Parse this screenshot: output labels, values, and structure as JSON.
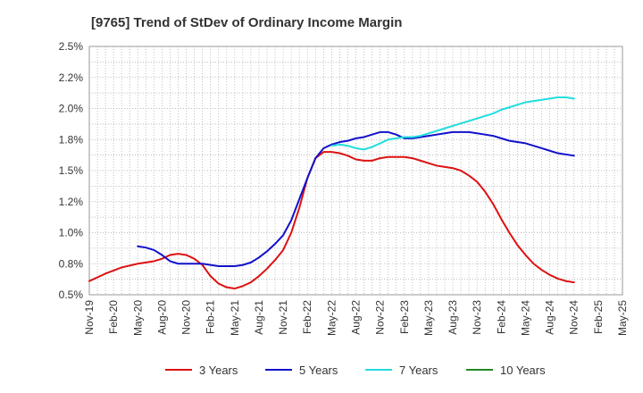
{
  "chart_data": {
    "type": "line",
    "title": "[9765]  Trend of StDev of Ordinary Income Margin",
    "xlabel": "",
    "ylabel": "",
    "x_ticks": [
      "Nov-19",
      "Feb-20",
      "May-20",
      "Aug-20",
      "Nov-20",
      "Feb-21",
      "May-21",
      "Aug-21",
      "Nov-21",
      "Feb-22",
      "May-22",
      "Aug-22",
      "Nov-22",
      "Feb-23",
      "May-23",
      "Aug-23",
      "Nov-23",
      "Feb-24",
      "May-24",
      "Aug-24",
      "Nov-24",
      "Feb-25",
      "May-25"
    ],
    "y_ticks": [
      "0.5%",
      "0.8%",
      "1.0%",
      "1.2%",
      "1.5%",
      "1.8%",
      "2.0%",
      "2.2%",
      "2.5%"
    ],
    "ylim": [
      0.5,
      2.5
    ],
    "grid": true,
    "legend_position": "bottom",
    "series": [
      {
        "name": "3 Years",
        "color": "#dd1111",
        "x": [
          "2019-11",
          "2020-01",
          "2020-03",
          "2020-05",
          "2020-07",
          "2020-08",
          "2020-09",
          "2020-10",
          "2020-11",
          "2020-12",
          "2021-01",
          "2021-02",
          "2021-03",
          "2021-04",
          "2021-05",
          "2021-06",
          "2021-07",
          "2021-08",
          "2021-09",
          "2021-10",
          "2021-11",
          "2021-12",
          "2022-01",
          "2022-02",
          "2022-03",
          "2022-04",
          "2022-05",
          "2022-06",
          "2022-07",
          "2022-08",
          "2022-09",
          "2022-10",
          "2022-11",
          "2022-12",
          "2023-01",
          "2023-02",
          "2023-03",
          "2023-04",
          "2023-05",
          "2023-06",
          "2023-07",
          "2023-08",
          "2023-09",
          "2023-10",
          "2023-11",
          "2023-12",
          "2024-01",
          "2024-02",
          "2024-03",
          "2024-04",
          "2024-05",
          "2024-06",
          "2024-07",
          "2024-08",
          "2024-09",
          "2024-10",
          "2024-11"
        ],
        "values": [
          0.61,
          0.67,
          0.72,
          0.75,
          0.77,
          0.79,
          0.82,
          0.83,
          0.82,
          0.79,
          0.74,
          0.65,
          0.59,
          0.56,
          0.55,
          0.57,
          0.6,
          0.65,
          0.71,
          0.78,
          0.86,
          1.0,
          1.2,
          1.44,
          1.6,
          1.65,
          1.65,
          1.64,
          1.62,
          1.59,
          1.58,
          1.58,
          1.6,
          1.61,
          1.61,
          1.61,
          1.6,
          1.58,
          1.56,
          1.54,
          1.53,
          1.52,
          1.5,
          1.46,
          1.41,
          1.33,
          1.23,
          1.11,
          1.0,
          0.9,
          0.82,
          0.75,
          0.7,
          0.66,
          0.63,
          0.61,
          0.6
        ]
      },
      {
        "name": "5 Years",
        "color": "#1111cc",
        "x": [
          "2020-05",
          "2020-06",
          "2020-07",
          "2020-08",
          "2020-09",
          "2020-10",
          "2020-11",
          "2020-12",
          "2021-01",
          "2021-02",
          "2021-03",
          "2021-04",
          "2021-05",
          "2021-06",
          "2021-07",
          "2021-08",
          "2021-09",
          "2021-10",
          "2021-11",
          "2021-12",
          "2022-01",
          "2022-02",
          "2022-03",
          "2022-04",
          "2022-05",
          "2022-06",
          "2022-07",
          "2022-08",
          "2022-09",
          "2022-10",
          "2022-11",
          "2022-12",
          "2023-01",
          "2023-02",
          "2023-03",
          "2023-04",
          "2023-05",
          "2023-06",
          "2023-07",
          "2023-08",
          "2023-09",
          "2023-10",
          "2023-11",
          "2023-12",
          "2024-01",
          "2024-02",
          "2024-03",
          "2024-04",
          "2024-05",
          "2024-06",
          "2024-07",
          "2024-08",
          "2024-09",
          "2024-10",
          "2024-11"
        ],
        "values": [
          0.89,
          0.88,
          0.86,
          0.82,
          0.77,
          0.75,
          0.75,
          0.75,
          0.75,
          0.74,
          0.73,
          0.73,
          0.73,
          0.74,
          0.76,
          0.8,
          0.85,
          0.91,
          0.98,
          1.1,
          1.27,
          1.44,
          1.6,
          1.68,
          1.71,
          1.73,
          1.74,
          1.76,
          1.77,
          1.79,
          1.81,
          1.81,
          1.79,
          1.76,
          1.76,
          1.77,
          1.78,
          1.79,
          1.8,
          1.81,
          1.81,
          1.81,
          1.8,
          1.79,
          1.78,
          1.76,
          1.74,
          1.73,
          1.72,
          1.7,
          1.68,
          1.66,
          1.64,
          1.63,
          1.62
        ]
      },
      {
        "name": "7 Years",
        "color": "#22dddd",
        "x": [
          "2022-05",
          "2022-06",
          "2022-07",
          "2022-08",
          "2022-09",
          "2022-10",
          "2022-11",
          "2022-12",
          "2023-01",
          "2023-02",
          "2023-03",
          "2023-04",
          "2023-05",
          "2023-06",
          "2023-07",
          "2023-08",
          "2023-09",
          "2023-10",
          "2023-11",
          "2023-12",
          "2024-01",
          "2024-02",
          "2024-03",
          "2024-04",
          "2024-05",
          "2024-06",
          "2024-07",
          "2024-08",
          "2024-09",
          "2024-10",
          "2024-11"
        ],
        "values": [
          1.7,
          1.71,
          1.7,
          1.68,
          1.67,
          1.69,
          1.72,
          1.75,
          1.76,
          1.77,
          1.77,
          1.78,
          1.8,
          1.82,
          1.84,
          1.86,
          1.88,
          1.9,
          1.92,
          1.94,
          1.96,
          1.99,
          2.01,
          2.03,
          2.05,
          2.06,
          2.07,
          2.08,
          2.09,
          2.09,
          2.08
        ]
      },
      {
        "name": "10 Years",
        "color": "#228822",
        "x": [],
        "values": []
      }
    ]
  }
}
